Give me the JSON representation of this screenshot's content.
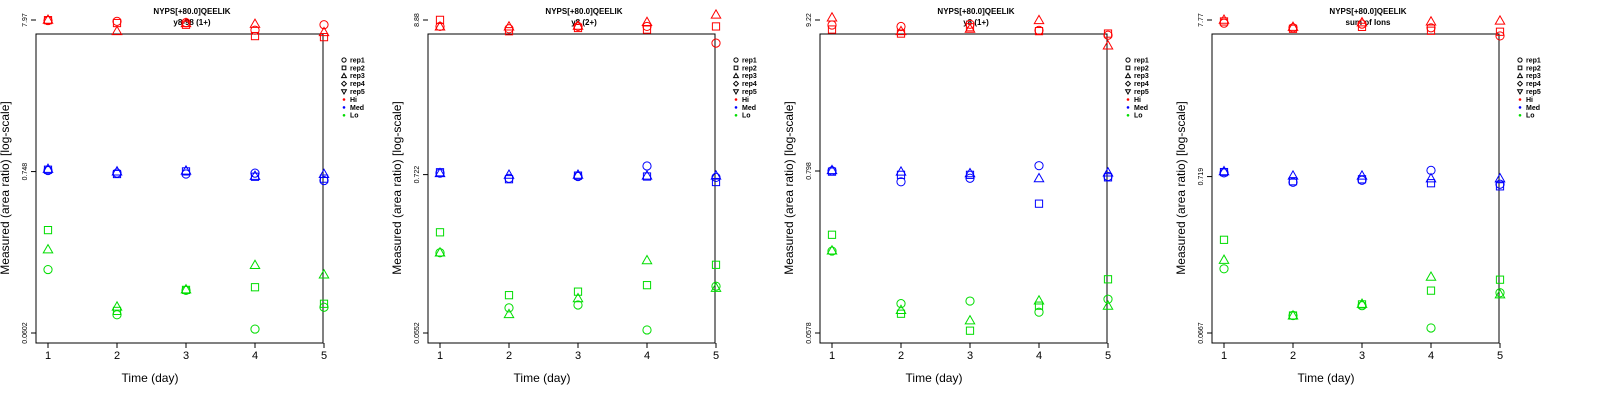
{
  "colors": {
    "Hi": "#ff0000",
    "Med": "#0000ff",
    "Lo": "#00dd00",
    "axis": "#000000"
  },
  "legend": {
    "entries": [
      {
        "label": "rep1",
        "symbol": "circle"
      },
      {
        "label": "rep2",
        "symbol": "square"
      },
      {
        "label": "rep3",
        "symbol": "triangle-up"
      },
      {
        "label": "rep4",
        "symbol": "diamond"
      },
      {
        "label": "rep5",
        "symbol": "triangle-down"
      },
      {
        "label": "Hi",
        "symbol": "dot",
        "level": "Hi"
      },
      {
        "label": "Med",
        "symbol": "dot",
        "level": "Med"
      },
      {
        "label": "Lo",
        "symbol": "dot",
        "level": "Lo"
      }
    ],
    "placement": "right"
  },
  "chart_data": [
    {
      "type": "scatter",
      "title": "NYPS[+80.0]QEELIK",
      "subtitle": "y8-98 (1+)",
      "xlabel": "Time (day)",
      "ylabel": "Measured (area ratio) [log-scale]",
      "log_y": true,
      "x_ticks": [
        "1",
        "2",
        "3",
        "4",
        "5"
      ],
      "y_ticks": [
        {
          "value": 0.0602,
          "label": "0.0602"
        },
        {
          "value": 0.748,
          "label": "0.748"
        },
        {
          "value": 7.97,
          "label": "7.97"
        }
      ],
      "series": [
        {
          "level": "Hi",
          "rep": "rep1",
          "symbol": "circle",
          "x": [
            1,
            2,
            3,
            4,
            5
          ],
          "y": [
            7.9,
            7.8,
            7.65,
            6.8,
            7.4
          ]
        },
        {
          "level": "Hi",
          "rep": "rep2",
          "symbol": "square",
          "x": [
            1,
            2,
            3,
            4,
            5
          ],
          "y": [
            7.95,
            7.6,
            7.4,
            6.2,
            6.1
          ]
        },
        {
          "level": "Hi",
          "rep": "rep3",
          "symbol": "triangle-up",
          "x": [
            1,
            2,
            3,
            4,
            5
          ],
          "y": [
            8.0,
            6.7,
            7.6,
            7.5,
            6.6
          ]
        },
        {
          "level": "Med",
          "rep": "rep1",
          "symbol": "circle",
          "x": [
            1,
            2,
            3,
            4,
            5
          ],
          "y": [
            0.76,
            0.73,
            0.72,
            0.73,
            0.65
          ]
        },
        {
          "level": "Med",
          "rep": "rep2",
          "symbol": "square",
          "x": [
            1,
            2,
            3,
            4,
            5
          ],
          "y": [
            0.77,
            0.72,
            0.75,
            0.69,
            0.67
          ]
        },
        {
          "level": "Med",
          "rep": "rep3",
          "symbol": "triangle-up",
          "x": [
            1,
            2,
            3,
            4,
            5
          ],
          "y": [
            0.78,
            0.75,
            0.76,
            0.7,
            0.72
          ]
        },
        {
          "level": "Lo",
          "rep": "rep1",
          "symbol": "circle",
          "x": [
            1,
            2,
            3,
            4,
            5
          ],
          "y": [
            0.162,
            0.08,
            0.117,
            0.064,
            0.09
          ]
        },
        {
          "level": "Lo",
          "rep": "rep2",
          "symbol": "square",
          "x": [
            1,
            2,
            3,
            4,
            5
          ],
          "y": [
            0.3,
            0.085,
            0.118,
            0.123,
            0.095
          ]
        },
        {
          "level": "Lo",
          "rep": "rep3",
          "symbol": "triangle-up",
          "x": [
            1,
            2,
            3,
            4,
            5
          ],
          "y": [
            0.222,
            0.091,
            0.119,
            0.174,
            0.15
          ]
        }
      ]
    },
    {
      "type": "scatter",
      "title": "NYPS[+80.0]QEELIK",
      "subtitle": "y8 (2+)",
      "xlabel": "Time (day)",
      "ylabel": "Measured (area ratio) [log-scale]",
      "log_y": true,
      "x_ticks": [
        "1",
        "2",
        "3",
        "4",
        "5"
      ],
      "y_ticks": [
        {
          "value": 0.0552,
          "label": "0.0552"
        },
        {
          "value": 0.722,
          "label": "0.722"
        },
        {
          "value": 8.88,
          "label": "8.88"
        }
      ],
      "series": [
        {
          "level": "Hi",
          "rep": "rep1",
          "symbol": "circle",
          "x": [
            1,
            2,
            3,
            4,
            5
          ],
          "y": [
            8.0,
            7.7,
            8.0,
            8.0,
            6.1
          ]
        },
        {
          "level": "Hi",
          "rep": "rep2",
          "symbol": "square",
          "x": [
            1,
            2,
            3,
            4,
            5
          ],
          "y": [
            8.9,
            7.4,
            7.8,
            7.6,
            8.0
          ]
        },
        {
          "level": "Hi",
          "rep": "rep3",
          "symbol": "triangle-up",
          "x": [
            1,
            2,
            3,
            4,
            5
          ],
          "y": [
            8.0,
            8.0,
            8.1,
            8.6,
            9.7
          ]
        },
        {
          "level": "Med",
          "rep": "rep1",
          "symbol": "circle",
          "x": [
            1,
            2,
            3,
            4,
            5
          ],
          "y": [
            0.74,
            0.68,
            0.7,
            0.83,
            0.69
          ]
        },
        {
          "level": "Med",
          "rep": "rep2",
          "symbol": "square",
          "x": [
            1,
            2,
            3,
            4,
            5
          ],
          "y": [
            0.75,
            0.67,
            0.71,
            0.7,
            0.64
          ]
        },
        {
          "level": "Med",
          "rep": "rep3",
          "symbol": "triangle-up",
          "x": [
            1,
            2,
            3,
            4,
            5
          ],
          "y": [
            0.74,
            0.72,
            0.72,
            0.71,
            0.71
          ]
        },
        {
          "level": "Lo",
          "rep": "rep1",
          "symbol": "circle",
          "x": [
            1,
            2,
            3,
            4,
            5
          ],
          "y": [
            0.203,
            0.083,
            0.087,
            0.058,
            0.118
          ]
        },
        {
          "level": "Lo",
          "rep": "rep2",
          "symbol": "square",
          "x": [
            1,
            2,
            3,
            4,
            5
          ],
          "y": [
            0.283,
            0.102,
            0.108,
            0.12,
            0.167
          ]
        },
        {
          "level": "Lo",
          "rep": "rep3",
          "symbol": "triangle-up",
          "x": [
            1,
            2,
            3,
            4,
            5
          ],
          "y": [
            0.204,
            0.075,
            0.097,
            0.18,
            0.115
          ]
        }
      ]
    },
    {
      "type": "scatter",
      "title": "NYPS[+80.0]QEELIK",
      "subtitle": "y8 (1+)",
      "xlabel": "Time (day)",
      "ylabel": "Measured (area ratio) [log-scale]",
      "log_y": true,
      "x_ticks": [
        "1",
        "2",
        "3",
        "4",
        "5"
      ],
      "y_ticks": [
        {
          "value": 0.0578,
          "label": "0.0578"
        },
        {
          "value": 0.798,
          "label": "0.798"
        },
        {
          "value": 9.22,
          "label": "9.22"
        }
      ],
      "series": [
        {
          "level": "Hi",
          "rep": "rep1",
          "symbol": "circle",
          "x": [
            1,
            2,
            3,
            4,
            5
          ],
          "y": [
            8.5,
            8.3,
            8.6,
            7.8,
            7.2
          ]
        },
        {
          "level": "Hi",
          "rep": "rep2",
          "symbol": "square",
          "x": [
            1,
            2,
            3,
            4,
            5
          ],
          "y": [
            7.9,
            7.4,
            8.2,
            7.7,
            7.4
          ]
        },
        {
          "level": "Hi",
          "rep": "rep3",
          "symbol": "triangle-up",
          "x": [
            1,
            2,
            3,
            4,
            5
          ],
          "y": [
            9.6,
            7.7,
            8.0,
            9.2,
            6.1
          ]
        },
        {
          "level": "Med",
          "rep": "rep1",
          "symbol": "circle",
          "x": [
            1,
            2,
            3,
            4,
            5
          ],
          "y": [
            0.8,
            0.67,
            0.71,
            0.87,
            0.73
          ]
        },
        {
          "level": "Med",
          "rep": "rep2",
          "symbol": "square",
          "x": [
            1,
            2,
            3,
            4,
            5
          ],
          "y": [
            0.79,
            0.75,
            0.75,
            0.47,
            0.72
          ]
        },
        {
          "level": "Med",
          "rep": "rep3",
          "symbol": "triangle-up",
          "x": [
            1,
            2,
            3,
            4,
            5
          ],
          "y": [
            0.81,
            0.79,
            0.77,
            0.71,
            0.78
          ]
        },
        {
          "level": "Lo",
          "rep": "rep1",
          "symbol": "circle",
          "x": [
            1,
            2,
            3,
            4,
            5
          ],
          "y": [
            0.218,
            0.093,
            0.097,
            0.081,
            0.1
          ]
        },
        {
          "level": "Lo",
          "rep": "rep2",
          "symbol": "square",
          "x": [
            1,
            2,
            3,
            4,
            5
          ],
          "y": [
            0.284,
            0.079,
            0.06,
            0.09,
            0.138
          ]
        },
        {
          "level": "Lo",
          "rep": "rep3",
          "symbol": "triangle-up",
          "x": [
            1,
            2,
            3,
            4,
            5
          ],
          "y": [
            0.22,
            0.084,
            0.071,
            0.098,
            0.09
          ]
        }
      ]
    },
    {
      "type": "scatter",
      "title": "NYPS[+80.0]QEELIK",
      "subtitle": "sum of Ions",
      "xlabel": "Time (day)",
      "ylabel": "Measured (area ratio) [log-scale]",
      "log_y": true,
      "x_ticks": [
        "1",
        "2",
        "3",
        "4",
        "5"
      ],
      "y_ticks": [
        {
          "value": 0.0667,
          "label": "0.0667"
        },
        {
          "value": 0.719,
          "label": "0.719"
        },
        {
          "value": 7.77,
          "label": "7.77"
        }
      ],
      "series": [
        {
          "level": "Hi",
          "rep": "rep1",
          "symbol": "circle",
          "x": [
            1,
            2,
            3,
            4,
            5
          ],
          "y": [
            7.4,
            6.9,
            7.3,
            6.9,
            6.1
          ]
        },
        {
          "level": "Hi",
          "rep": "rep2",
          "symbol": "square",
          "x": [
            1,
            2,
            3,
            4,
            5
          ],
          "y": [
            7.6,
            6.8,
            7.0,
            6.6,
            6.5
          ]
        },
        {
          "level": "Hi",
          "rep": "rep3",
          "symbol": "triangle-up",
          "x": [
            1,
            2,
            3,
            4,
            5
          ],
          "y": [
            7.8,
            7.0,
            7.5,
            7.6,
            7.7
          ]
        },
        {
          "level": "Med",
          "rep": "rep1",
          "symbol": "circle",
          "x": [
            1,
            2,
            3,
            4,
            5
          ],
          "y": [
            0.76,
            0.66,
            0.68,
            0.79,
            0.64
          ]
        },
        {
          "level": "Med",
          "rep": "rep2",
          "symbol": "square",
          "x": [
            1,
            2,
            3,
            4,
            5
          ],
          "y": [
            0.77,
            0.67,
            0.69,
            0.65,
            0.62
          ]
        },
        {
          "level": "Med",
          "rep": "rep3",
          "symbol": "triangle-up",
          "x": [
            1,
            2,
            3,
            4,
            5
          ],
          "y": [
            0.78,
            0.73,
            0.73,
            0.7,
            0.7
          ]
        },
        {
          "level": "Lo",
          "rep": "rep1",
          "symbol": "circle",
          "x": [
            1,
            2,
            3,
            4,
            5
          ],
          "y": [
            0.177,
            0.087,
            0.101,
            0.072,
            0.123
          ]
        },
        {
          "level": "Lo",
          "rep": "rep2",
          "symbol": "square",
          "x": [
            1,
            2,
            3,
            4,
            5
          ],
          "y": [
            0.275,
            0.087,
            0.103,
            0.127,
            0.15
          ]
        },
        {
          "level": "Lo",
          "rep": "rep3",
          "symbol": "triangle-up",
          "x": [
            1,
            2,
            3,
            4,
            5
          ],
          "y": [
            0.203,
            0.087,
            0.104,
            0.157,
            0.12
          ]
        }
      ]
    }
  ]
}
